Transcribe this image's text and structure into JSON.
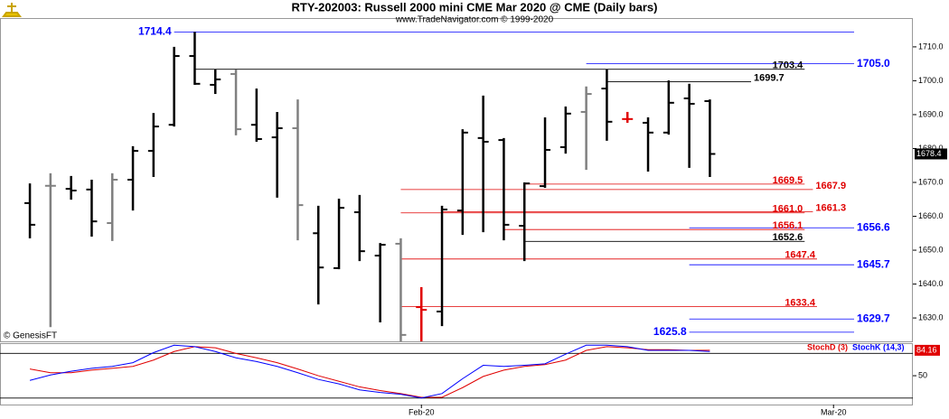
{
  "chart_data": {
    "type": "ohlc",
    "title": "RTY-202003:  Russell 2000 mini CME Mar 2020 @ CME  (Daily bars)",
    "subtitle": "www.TradeNavigator.com © 1999-2020",
    "watermark": "© GenesisFT",
    "x": [
      0,
      1,
      2,
      3,
      4,
      5,
      6,
      7,
      8,
      9,
      10,
      11,
      12,
      13,
      14,
      15,
      16,
      17,
      18,
      19,
      20,
      21,
      22,
      23,
      24,
      25,
      26,
      27,
      28,
      29,
      30,
      31,
      32,
      33
    ],
    "open": [
      1663.9,
      1669,
      1668.1,
      1667.9,
      1658,
      1670.8,
      1679.3,
      1687,
      1707.3,
      1698.8,
      1702,
      1687,
      1683.3,
      1686,
      1655,
      1644.7,
      1661.2,
      1648.4,
      1651.9,
      1633.2,
      1631.9,
      1661.7,
      1683.1,
      1682.5,
      1657.2,
      1668.9,
      1680.4,
      1690.8,
      1697.7,
      1688.7,
      1687.6,
      1684.7,
      1694.8,
      1694
    ],
    "high": [
      1669.7,
      1672.7,
      1671.9,
      1670.8,
      1672.7,
      1680.7,
      1690.5,
      1710,
      1714.4,
      1703.3,
      1703.3,
      1697.7,
      1690.8,
      1694.5,
      1663.1,
      1665.2,
      1666.3,
      1652.1,
      1653.5,
      1639.1,
      1663.1,
      1685.7,
      1695.6,
      1683.1,
      1670,
      1689.2,
      1692.4,
      1698.3,
      1703.3,
      1690.8,
      1689.2,
      1700.1,
      1699.1,
      1694.5
    ],
    "low": [
      1653.5,
      1627.3,
      1664.9,
      1654,
      1652.7,
      1661.7,
      1671.6,
      1686.5,
      1698.8,
      1696.1,
      1683.9,
      1682,
      1665.5,
      1652.9,
      1634,
      1644.4,
      1646.8,
      1628.7,
      1622,
      1622,
      1627.6,
      1654.5,
      1655.3,
      1652.9,
      1646.8,
      1668.4,
      1678.5,
      1673.7,
      1682.3,
      1687.6,
      1673.2,
      1684.1,
      1674.3,
      1671.6
    ],
    "close": [
      1657.5,
      1669,
      1667.6,
      1658.5,
      1670.8,
      1679.3,
      1686.5,
      1707.3,
      1699.1,
      1700.4,
      1685.7,
      1682.8,
      1686,
      1663.3,
      1644.9,
      1662.5,
      1649.7,
      1651.6,
      1625,
      1632.4,
      1662,
      1684.7,
      1682,
      1657.5,
      1669.7,
      1679.6,
      1690.3,
      1696.1,
      1687.9,
      1688.7,
      1684.7,
      1693.5,
      1693.2,
      1678.4
    ],
    "colors": [
      "#000000",
      "#808080",
      "#000000",
      "#000000",
      "#808080",
      "#000000",
      "#000000",
      "#000000",
      "#000000",
      "#000000",
      "#808080",
      "#000000",
      "#000000",
      "#808080",
      "#000000",
      "#000000",
      "#000000",
      "#000000",
      "#808080",
      "#e00000",
      "#000000",
      "#000000",
      "#000000",
      "#000000",
      "#000000",
      "#000000",
      "#000000",
      "#808080",
      "#000000",
      "#e00000",
      "#000000",
      "#000000",
      "#000000",
      "#000000"
    ],
    "xlim": [
      -1.45,
      42.85
    ],
    "xticks": [
      {
        "value": 19,
        "label": "Feb-20"
      },
      {
        "value": 39,
        "label": "Mar-20"
      }
    ],
    "ylim": [
      1623.1,
      1718.5
    ],
    "yticks": [
      {
        "value": 1630,
        "label": "1630.0"
      },
      {
        "value": 1640,
        "label": "1640.0"
      },
      {
        "value": 1650,
        "label": "1650.0"
      },
      {
        "value": 1660,
        "label": "1660.0"
      },
      {
        "value": 1670,
        "label": "1670.0"
      },
      {
        "value": 1680,
        "label": "1680.0"
      },
      {
        "value": 1690,
        "label": "1690.0"
      },
      {
        "value": 1700,
        "label": "1700.0"
      },
      {
        "value": 1710,
        "label": "1710.0"
      }
    ],
    "last_price": 1678.4,
    "levels": [
      {
        "value": 1714.4,
        "label": "1714.4",
        "color": "#0000ff",
        "start": 7,
        "end": 40,
        "label_side": "before"
      },
      {
        "value": 1703.4,
        "label": "1703.4",
        "color": "#000000",
        "start": 8,
        "end": 37.6,
        "label_side": "inside"
      },
      {
        "value": 1705,
        "label": "1705.0",
        "color": "#0000ff",
        "start": 27,
        "end": 40,
        "label_side": "after"
      },
      {
        "value": 1699.7,
        "label": "1699.7",
        "color": "#000000",
        "start": 28,
        "end": 35,
        "label_side": "after"
      },
      {
        "value": 1669.5,
        "label": "1669.5",
        "color": "#e00000",
        "start": 24,
        "end": 37.6,
        "label_side": "inside"
      },
      {
        "value": 1667.9,
        "label": "1667.9",
        "color": "#e00000",
        "start": 18,
        "end": 38,
        "label_side": "after"
      },
      {
        "value": 1661.3,
        "label": "1661.3",
        "color": "#e00000",
        "start": 20,
        "end": 38,
        "label_side": "after"
      },
      {
        "value": 1661,
        "label": "1661.0",
        "color": "#e00000",
        "start": 18,
        "end": 37.6,
        "label_side": "inside"
      },
      {
        "value": 1656.1,
        "label": "1656.1",
        "color": "#e00000",
        "start": 23,
        "end": 37.6,
        "label_side": "inside"
      },
      {
        "value": 1656.6,
        "label": "1656.6",
        "color": "#0000ff",
        "start": 32,
        "end": 40,
        "label_side": "after"
      },
      {
        "value": 1652.6,
        "label": "1652.6",
        "color": "#000000",
        "start": 24,
        "end": 37.6,
        "label_side": "inside"
      },
      {
        "value": 1647.4,
        "label": "1647.4",
        "color": "#e00000",
        "start": 18,
        "end": 38.2,
        "label_side": "inside"
      },
      {
        "value": 1645.7,
        "label": "1645.7",
        "color": "#0000ff",
        "start": 32,
        "end": 40,
        "label_side": "after"
      },
      {
        "value": 1633.4,
        "label": "1633.4",
        "color": "#e00000",
        "start": 18,
        "end": 38.2,
        "label_side": "inside"
      },
      {
        "value": 1629.7,
        "label": "1629.7",
        "color": "#0000ff",
        "start": 32,
        "end": 40,
        "label_side": "after"
      },
      {
        "value": 1625.8,
        "label": "1625.8",
        "color": "#0000ff",
        "start": 32,
        "end": 40,
        "label_side": "before"
      }
    ],
    "indicator": {
      "type": "line",
      "ylim": [
        11.25,
        93.75
      ],
      "yticks": [
        50
      ],
      "reference_lines": [
        20,
        80
      ],
      "last_value": 84.16,
      "series": [
        {
          "name": "StochD (3)",
          "color": "#e00000",
          "values": [
            59,
            54,
            54,
            57.5,
            60,
            62.5,
            71,
            82.5,
            89,
            87.5,
            80,
            74,
            67.5,
            59,
            50,
            42.5,
            35,
            30,
            26,
            21,
            21,
            34,
            49,
            57.5,
            62.5,
            65,
            71,
            84,
            89,
            87.5,
            85,
            85,
            84,
            84.16
          ]
        },
        {
          "name": "StochK (14,3)",
          "color": "#0000ff",
          "values": [
            43.75,
            51,
            56,
            60,
            62.5,
            67.5,
            81,
            91,
            89,
            82.5,
            74,
            69,
            62.5,
            54,
            45,
            39,
            31,
            27.5,
            25,
            20,
            26,
            46,
            64,
            62.5,
            64,
            66,
            79,
            91,
            91,
            89,
            84,
            84,
            84,
            82.5
          ]
        }
      ]
    }
  }
}
